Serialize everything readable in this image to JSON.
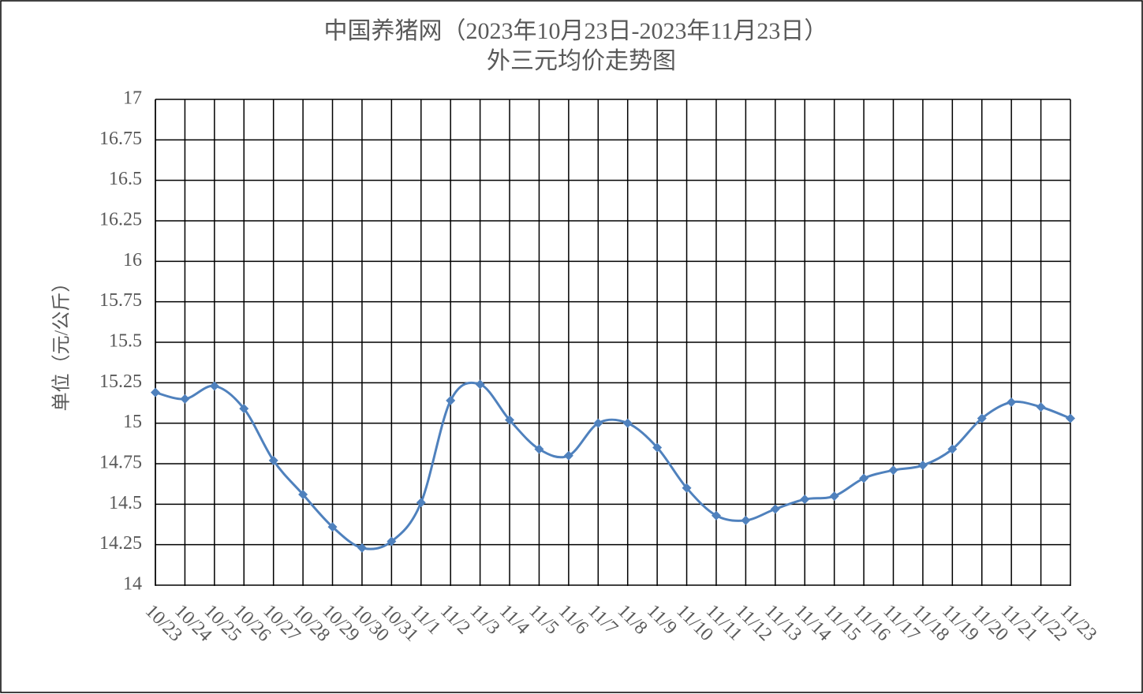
{
  "chart_data": {
    "type": "line",
    "title": "中国养猪网（2023年10月23日-2023年11月23日）",
    "subtitle": "外三元均价走势图",
    "y_label": "单位（元/公斤）",
    "categories": [
      "10/23",
      "10/24",
      "10/25",
      "10/26",
      "10/27",
      "10/28",
      "10/29",
      "10/30",
      "10/31",
      "11/1",
      "11/2",
      "11/3",
      "11/4",
      "11/5",
      "11/6",
      "11/7",
      "11/8",
      "11/9",
      "11/10",
      "11/11",
      "11/12",
      "11/13",
      "11/14",
      "11/15",
      "11/16",
      "11/17",
      "11/18",
      "11/19",
      "11/20",
      "11/21",
      "11/22",
      "11/23"
    ],
    "series": [
      {
        "name": "外三元均价",
        "color": "#4f81bd",
        "values": [
          15.19,
          15.15,
          15.23,
          15.09,
          14.77,
          14.56,
          14.36,
          14.23,
          14.27,
          14.51,
          15.14,
          15.24,
          15.02,
          14.84,
          14.8,
          15.0,
          15.0,
          14.85,
          14.6,
          14.43,
          14.4,
          14.47,
          14.53,
          14.55,
          14.66,
          14.71,
          14.74,
          14.84,
          15.03,
          15.13,
          15.1,
          15.03
        ]
      }
    ],
    "ylim": [
      14,
      17
    ],
    "yticks": [
      14,
      14.25,
      14.5,
      14.75,
      15,
      15.25,
      15.5,
      15.75,
      16,
      16.25,
      16.5,
      16.75,
      17
    ],
    "grid": true
  }
}
